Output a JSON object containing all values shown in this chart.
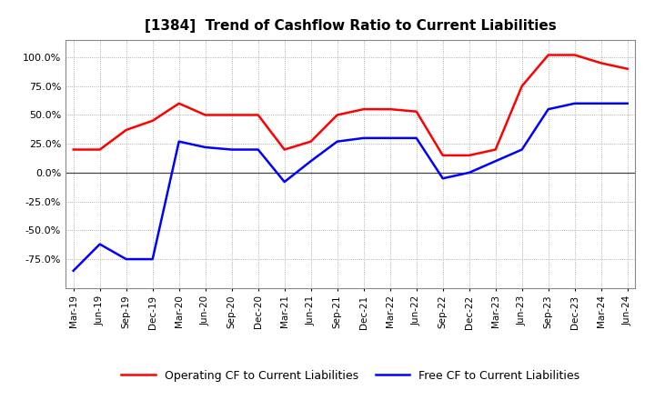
{
  "title": "[1384]  Trend of Cashflow Ratio to Current Liabilities",
  "x_labels": [
    "Mar-19",
    "Jun-19",
    "Sep-19",
    "Dec-19",
    "Mar-20",
    "Jun-20",
    "Sep-20",
    "Dec-20",
    "Mar-21",
    "Jun-21",
    "Sep-21",
    "Dec-21",
    "Mar-22",
    "Jun-22",
    "Sep-22",
    "Dec-22",
    "Mar-23",
    "Jun-23",
    "Sep-23",
    "Dec-23",
    "Mar-24",
    "Jun-24"
  ],
  "operating_cf": [
    20.0,
    20.0,
    37.0,
    45.0,
    60.0,
    50.0,
    50.0,
    50.0,
    20.0,
    27.0,
    50.0,
    55.0,
    55.0,
    53.0,
    15.0,
    15.0,
    20.0,
    75.0,
    102.0,
    102.0,
    95.0,
    90.0
  ],
  "free_cf": [
    -85.0,
    -62.0,
    -75.0,
    -75.0,
    27.0,
    22.0,
    20.0,
    20.0,
    -8.0,
    10.0,
    27.0,
    30.0,
    30.0,
    30.0,
    -5.0,
    0.0,
    10.0,
    20.0,
    55.0,
    60.0,
    60.0,
    60.0
  ],
  "operating_color": "#ff0000",
  "free_color": "#0000ff",
  "ylim": [
    -100.0,
    115.0
  ],
  "yticks": [
    -75.0,
    -50.0,
    -25.0,
    0.0,
    25.0,
    50.0,
    75.0,
    100.0
  ],
  "background_color": "#ffffff",
  "plot_bg_color": "#ffffff",
  "grid_color": "#999999",
  "legend_labels": [
    "Operating CF to Current Liabilities",
    "Free CF to Current Liabilities"
  ]
}
